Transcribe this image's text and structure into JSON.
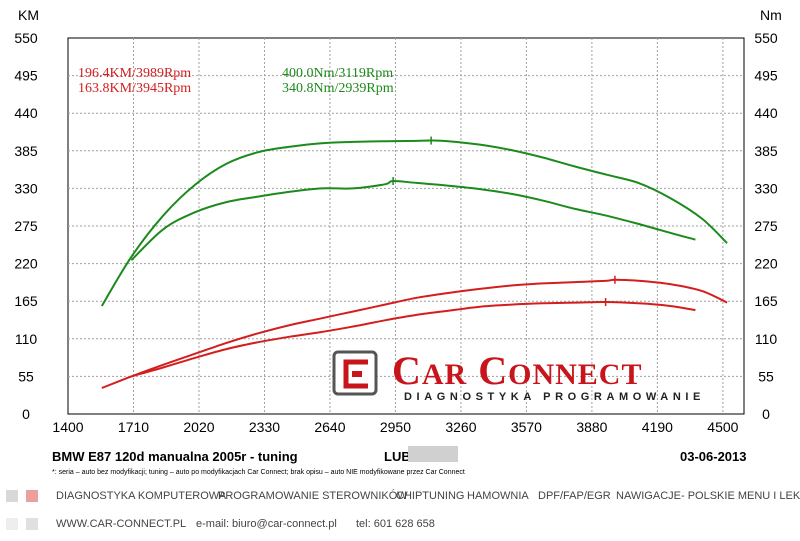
{
  "chart_data": {
    "type": "line",
    "x_ticks": [
      1400,
      1710,
      2020,
      2330,
      2640,
      2950,
      3260,
      3570,
      3880,
      4190,
      4500
    ],
    "xlim": [
      1400,
      4600
    ],
    "left_axis": {
      "unit": "KM",
      "ticks": [
        0,
        55,
        110,
        165,
        220,
        275,
        330,
        385,
        440,
        495,
        550
      ],
      "ylim": [
        0,
        550
      ]
    },
    "right_axis": {
      "unit": "Nm",
      "ticks": [
        0,
        55,
        110,
        165,
        220,
        275,
        330,
        385,
        440,
        495,
        550
      ],
      "ylim": [
        0,
        550
      ]
    },
    "grid": true,
    "peak_labels": {
      "power_tuned": "196.4KM/3989Rpm",
      "power_stock": "163.8KM/3945Rpm",
      "torque_tuned": "400.0Nm/3119Rpm",
      "torque_stock": "340.8Nm/2939Rpm"
    },
    "series": [
      {
        "axis": "right",
        "color": "#1c8a1c",
        "x": [
          1560,
          1700,
          1850,
          2000,
          2150,
          2300,
          2450,
          2600,
          2750,
          2900,
          3050,
          3119,
          3200,
          3350,
          3500,
          3650,
          3800,
          3950,
          4100,
          4250,
          4400,
          4520
        ],
        "y": [
          158,
          230,
          290,
          335,
          366,
          383,
          391,
          396,
          398,
          399,
          399.5,
          400,
          399,
          394,
          386,
          375,
          362,
          350,
          338,
          316,
          286,
          250
        ]
      },
      {
        "axis": "right",
        "color": "#1c8a1c",
        "x": [
          1700,
          1850,
          2000,
          2150,
          2300,
          2450,
          2600,
          2750,
          2900,
          2939,
          3050,
          3200,
          3350,
          3500,
          3650,
          3800,
          3950,
          4100,
          4250,
          4370
        ],
        "y": [
          225,
          270,
          295,
          310,
          318,
          325,
          330,
          330,
          336,
          340.8,
          338,
          334,
          329,
          322,
          312,
          300,
          290,
          278,
          265,
          255
        ]
      },
      {
        "axis": "left",
        "color": "#d41e1e",
        "x": [
          1560,
          1700,
          1850,
          2000,
          2150,
          2300,
          2450,
          2600,
          2750,
          2900,
          3050,
          3200,
          3350,
          3500,
          3650,
          3800,
          3950,
          3989,
          4100,
          4250,
          4400,
          4520
        ],
        "y": [
          38,
          55,
          72,
          88,
          104,
          118,
          130,
          140,
          150,
          160,
          170,
          177,
          183,
          188,
          191,
          193,
          195,
          196.4,
          195,
          190,
          180,
          163
        ]
      },
      {
        "axis": "left",
        "color": "#d41e1e",
        "x": [
          1700,
          1850,
          2000,
          2150,
          2300,
          2450,
          2600,
          2750,
          2900,
          3050,
          3200,
          3350,
          3500,
          3650,
          3800,
          3945,
          4100,
          4250,
          4370
        ],
        "y": [
          55,
          68,
          82,
          95,
          105,
          113,
          120,
          128,
          137,
          145,
          151,
          157,
          160,
          162,
          163,
          163.8,
          162,
          158,
          152
        ]
      }
    ]
  },
  "logo": {
    "word_1": "C",
    "word_1_rest": "AR",
    "word_2": "C",
    "word_2_rest": "ONNECT",
    "tagline": "DIAGNOSTYKA PROGRAMOWANIE"
  },
  "info": {
    "car": "BMW E87 120d manualna 2005r - tuning",
    "plate": "LUB",
    "date": "03-06-2013",
    "note": "*: seria – auto bez modyfikacji; tuning – auto po modyfikacjach Car Connect; brak opisu – auto NIE modyfikowane przez Car Connect"
  },
  "services": [
    "DIAGNOSTYKA KOMPUTEROWA",
    "PROGRAMOWANIE STEROWNIKÓW",
    "CHIPTUNING",
    "HAMOWNIA",
    "DPF/FAP/EGR",
    "NAWIGACJE- POLSKIE MENU I LEKTOR"
  ],
  "contact": {
    "www": "WWW.CAR-CONNECT.PL",
    "email": "e-mail: biuro@car-connect.pl",
    "phone": "tel: 601 628 658"
  },
  "colors": {
    "power": "#d41e1e",
    "torque": "#1c8a1c",
    "brand": "#c8151b",
    "accent_square": "#e8a0a0",
    "grey_square": "#d8d8d8"
  }
}
